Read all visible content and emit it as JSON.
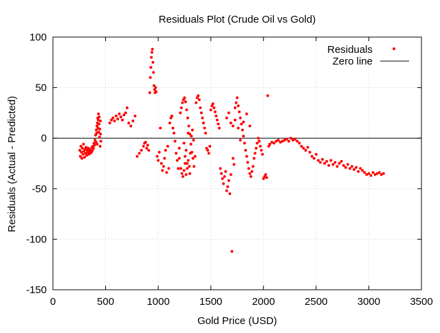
{
  "chart_data": {
    "type": "scatter",
    "title": "Residuals Plot (Crude Oil vs Gold)",
    "xlabel": "Gold Price (USD)",
    "ylabel": "Residuals (Actual - Predicted)",
    "xlim": [
      0,
      3500
    ],
    "ylim": [
      -150,
      100
    ],
    "xticks": [
      0,
      500,
      1000,
      1500,
      2000,
      2500,
      3000,
      3500
    ],
    "yticks": [
      -150,
      -100,
      -50,
      0,
      50,
      100
    ],
    "grid": true,
    "legend_position": "top-right",
    "colors": {
      "points": "#ff0000",
      "zero_line": "#000000",
      "grid": "#b0b0b0"
    },
    "reference_line": {
      "name": "Zero line",
      "y": 0
    },
    "series": [
      {
        "name": "Residuals",
        "points": [
          [
            255,
            -12
          ],
          [
            260,
            -18
          ],
          [
            265,
            -8
          ],
          [
            270,
            -14
          ],
          [
            275,
            -20
          ],
          [
            280,
            -10
          ],
          [
            285,
            -16
          ],
          [
            290,
            -6
          ],
          [
            295,
            -13
          ],
          [
            300,
            -19
          ],
          [
            305,
            -11
          ],
          [
            310,
            -15
          ],
          [
            315,
            -9
          ],
          [
            320,
            -17
          ],
          [
            325,
            -12
          ],
          [
            330,
            -14
          ],
          [
            335,
            -10
          ],
          [
            340,
            -16
          ],
          [
            345,
            -13
          ],
          [
            350,
            -11
          ],
          [
            355,
            -15
          ],
          [
            360,
            -12
          ],
          [
            365,
            -14
          ],
          [
            370,
            -9
          ],
          [
            375,
            -12
          ],
          [
            380,
            -8
          ],
          [
            385,
            -10
          ],
          [
            390,
            -5
          ],
          [
            395,
            -7
          ],
          [
            400,
            -2
          ],
          [
            405,
            3
          ],
          [
            410,
            -4
          ],
          [
            412,
            8
          ],
          [
            415,
            5
          ],
          [
            418,
            12
          ],
          [
            420,
            -6
          ],
          [
            422,
            15
          ],
          [
            425,
            20
          ],
          [
            428,
            10
          ],
          [
            430,
            18
          ],
          [
            432,
            24
          ],
          [
            435,
            6
          ],
          [
            438,
            14
          ],
          [
            440,
            21
          ],
          [
            442,
            1
          ],
          [
            445,
            9
          ],
          [
            448,
            -8
          ],
          [
            450,
            17
          ],
          [
            452,
            4
          ],
          [
            455,
            -3
          ],
          [
            540,
            15
          ],
          [
            555,
            18
          ],
          [
            570,
            20
          ],
          [
            585,
            17
          ],
          [
            600,
            22
          ],
          [
            615,
            19
          ],
          [
            630,
            24
          ],
          [
            645,
            21
          ],
          [
            660,
            18
          ],
          [
            675,
            23
          ],
          [
            690,
            25
          ],
          [
            705,
            30
          ],
          [
            720,
            15
          ],
          [
            740,
            12
          ],
          [
            760,
            17
          ],
          [
            780,
            22
          ],
          [
            800,
            -18
          ],
          [
            820,
            -15
          ],
          [
            840,
            -12
          ],
          [
            860,
            -8
          ],
          [
            870,
            -5
          ],
          [
            880,
            -4
          ],
          [
            890,
            -10
          ],
          [
            900,
            -7
          ],
          [
            910,
            -12
          ],
          [
            920,
            45
          ],
          [
            925,
            60
          ],
          [
            930,
            70
          ],
          [
            935,
            80
          ],
          [
            940,
            85
          ],
          [
            945,
            88
          ],
          [
            950,
            75
          ],
          [
            955,
            65
          ],
          [
            960,
            52
          ],
          [
            965,
            48
          ],
          [
            970,
            45
          ],
          [
            975,
            50
          ],
          [
            980,
            46
          ],
          [
            990,
            -18
          ],
          [
            1000,
            -22
          ],
          [
            1010,
            -14
          ],
          [
            1020,
            10
          ],
          [
            1030,
            -25
          ],
          [
            1040,
            -32
          ],
          [
            1050,
            -28
          ],
          [
            1060,
            -20
          ],
          [
            1070,
            -12
          ],
          [
            1080,
            -34
          ],
          [
            1090,
            -8
          ],
          [
            1100,
            -30
          ],
          [
            1110,
            15
          ],
          [
            1120,
            20
          ],
          [
            1130,
            22
          ],
          [
            1140,
            10
          ],
          [
            1150,
            5
          ],
          [
            1160,
            -3
          ],
          [
            1170,
            -15
          ],
          [
            1180,
            -22
          ],
          [
            1190,
            -30
          ],
          [
            1200,
            -10
          ],
          [
            1210,
            25
          ],
          [
            1220,
            30
          ],
          [
            1230,
            35
          ],
          [
            1240,
            38
          ],
          [
            1250,
            40
          ],
          [
            1260,
            36
          ],
          [
            1270,
            28
          ],
          [
            1280,
            20
          ],
          [
            1290,
            12
          ],
          [
            1300,
            4
          ],
          [
            1310,
            -6
          ],
          [
            1320,
            -14
          ],
          [
            1330,
            -20
          ],
          [
            1340,
            -28
          ],
          [
            1350,
            -18
          ],
          [
            1360,
            35
          ],
          [
            1370,
            40
          ],
          [
            1380,
            42
          ],
          [
            1390,
            38
          ],
          [
            1400,
            30
          ],
          [
            1410,
            25
          ],
          [
            1420,
            20
          ],
          [
            1430,
            15
          ],
          [
            1440,
            10
          ],
          [
            1450,
            5
          ],
          [
            1460,
            -10
          ],
          [
            1470,
            -12
          ],
          [
            1480,
            -15
          ],
          [
            1490,
            -8
          ],
          [
            1500,
            28
          ],
          [
            1510,
            32
          ],
          [
            1520,
            34
          ],
          [
            1530,
            30
          ],
          [
            1540,
            26
          ],
          [
            1550,
            22
          ],
          [
            1560,
            18
          ],
          [
            1570,
            14
          ],
          [
            1580,
            10
          ],
          [
            1590,
            -30
          ],
          [
            1600,
            -35
          ],
          [
            1610,
            -40
          ],
          [
            1620,
            -45
          ],
          [
            1630,
            -38
          ],
          [
            1640,
            -33
          ],
          [
            1650,
            -52
          ],
          [
            1660,
            -48
          ],
          [
            1670,
            -42
          ],
          [
            1680,
            -55
          ],
          [
            1690,
            -36
          ],
          [
            1700,
            -112
          ],
          [
            1710,
            -20
          ],
          [
            1720,
            -26
          ],
          [
            1730,
            30
          ],
          [
            1740,
            35
          ],
          [
            1750,
            40
          ],
          [
            1760,
            32
          ],
          [
            1770,
            26
          ],
          [
            1780,
            20
          ],
          [
            1790,
            14
          ],
          [
            1800,
            8
          ],
          [
            1810,
            2
          ],
          [
            1820,
            -5
          ],
          [
            1830,
            -12
          ],
          [
            1840,
            -18
          ],
          [
            1850,
            -24
          ],
          [
            1860,
            -30
          ],
          [
            1870,
            -35
          ],
          [
            1880,
            -38
          ],
          [
            1890,
            -33
          ],
          [
            1900,
            -28
          ],
          [
            1910,
            -20
          ],
          [
            1920,
            -15
          ],
          [
            1930,
            -10
          ],
          [
            1940,
            -5
          ],
          [
            1950,
            0
          ],
          [
            1960,
            -3
          ],
          [
            1970,
            -8
          ],
          [
            1980,
            -12
          ],
          [
            1990,
            -16
          ],
          [
            2000,
            -40
          ],
          [
            2010,
            -38
          ],
          [
            2020,
            -36
          ],
          [
            2030,
            -39
          ],
          [
            2040,
            42
          ],
          [
            2050,
            -8
          ],
          [
            2060,
            -6
          ],
          [
            2080,
            -4
          ],
          [
            2100,
            -5
          ],
          [
            2120,
            -3
          ],
          [
            2140,
            -2
          ],
          [
            2160,
            -4
          ],
          [
            2180,
            -3
          ],
          [
            2200,
            -2
          ],
          [
            2220,
            -1
          ],
          [
            2240,
            -3
          ],
          [
            2260,
            0
          ],
          [
            2280,
            -2
          ],
          [
            2300,
            -1
          ],
          [
            2320,
            -3
          ],
          [
            2340,
            -5
          ],
          [
            2360,
            -8
          ],
          [
            2380,
            -10
          ],
          [
            2400,
            -12
          ],
          [
            2420,
            -9
          ],
          [
            2440,
            -14
          ],
          [
            2460,
            -18
          ],
          [
            2480,
            -20
          ],
          [
            2500,
            -16
          ],
          [
            2520,
            -22
          ],
          [
            2540,
            -24
          ],
          [
            2560,
            -21
          ],
          [
            2580,
            -25
          ],
          [
            2600,
            -23
          ],
          [
            2620,
            -27
          ],
          [
            2640,
            -22
          ],
          [
            2660,
            -26
          ],
          [
            2680,
            -24
          ],
          [
            2700,
            -28
          ],
          [
            2720,
            -25
          ],
          [
            2740,
            -23
          ],
          [
            2760,
            -27
          ],
          [
            2780,
            -29
          ],
          [
            2800,
            -26
          ],
          [
            2820,
            -30
          ],
          [
            2840,
            -28
          ],
          [
            2860,
            -31
          ],
          [
            2880,
            -29
          ],
          [
            2900,
            -33
          ],
          [
            2920,
            -30
          ],
          [
            2940,
            -32
          ],
          [
            2960,
            -34
          ],
          [
            2980,
            -36
          ],
          [
            3000,
            -35
          ],
          [
            3020,
            -37
          ],
          [
            3040,
            -34
          ],
          [
            3060,
            -36
          ],
          [
            3080,
            -35
          ],
          [
            3100,
            -34
          ],
          [
            3120,
            -36
          ],
          [
            3140,
            -35
          ],
          [
            1245,
            -5
          ],
          [
            1255,
            -18
          ],
          [
            1265,
            -12
          ],
          [
            1275,
            -25
          ],
          [
            1285,
            5
          ],
          [
            1295,
            -28
          ],
          [
            1305,
            -15
          ],
          [
            1315,
            2
          ],
          [
            1325,
            8
          ],
          [
            1335,
            -2
          ],
          [
            1650,
            20
          ],
          [
            1670,
            25
          ],
          [
            1690,
            15
          ],
          [
            1710,
            12
          ],
          [
            1730,
            18
          ],
          [
            1760,
            10
          ],
          [
            1780,
            -2
          ],
          [
            1810,
            16
          ],
          [
            1840,
            24
          ],
          [
            1870,
            12
          ],
          [
            1200,
            -20
          ],
          [
            1215,
            -30
          ],
          [
            1225,
            -35
          ],
          [
            1235,
            -38
          ],
          [
            1245,
            -32
          ],
          [
            1255,
            -25
          ],
          [
            1265,
            -36
          ],
          [
            1275,
            -30
          ],
          [
            1285,
            -22
          ],
          [
            1300,
            -35
          ]
        ]
      }
    ]
  }
}
